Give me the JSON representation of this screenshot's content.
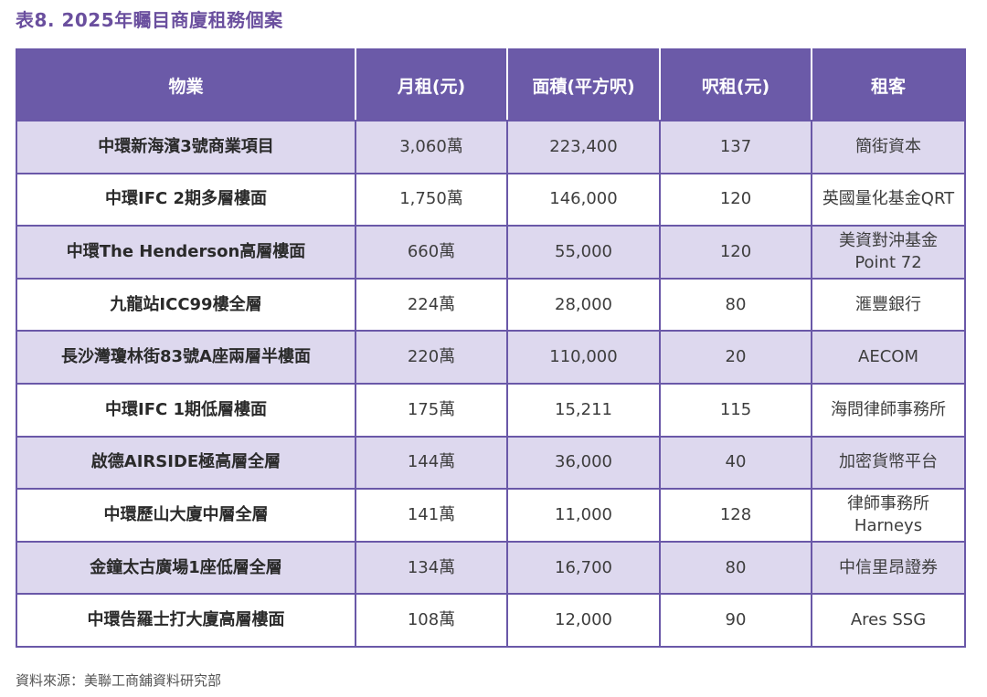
{
  "title": "表8. 2025年矚目商廈租務個案",
  "columns": [
    "物業",
    "月租(元)",
    "面積(平方呎)",
    "呎租(元)",
    "租客"
  ],
  "rows": [
    {
      "property": "中環新海濱3號商業項目",
      "rent": "3,060萬",
      "area": "223,400",
      "psf": "137",
      "tenant": [
        "簡街資本"
      ]
    },
    {
      "property": "中環IFC 2期多層樓面",
      "rent": "1,750萬",
      "area": "146,000",
      "psf": "120",
      "tenant": [
        "英國量化基金QRT"
      ]
    },
    {
      "property": "中環The Henderson高層樓面",
      "rent": "660萬",
      "area": "55,000",
      "psf": "120",
      "tenant": [
        "美資對沖基金",
        "Point 72"
      ]
    },
    {
      "property": "九龍站ICC99樓全層",
      "rent": "224萬",
      "area": "28,000",
      "psf": "80",
      "tenant": [
        "滙豐銀行"
      ]
    },
    {
      "property": "長沙灣瓊林街83號A座兩層半樓面",
      "rent": "220萬",
      "area": "110,000",
      "psf": "20",
      "tenant": [
        "AECOM"
      ]
    },
    {
      "property": "中環IFC 1期低層樓面",
      "rent": "175萬",
      "area": "15,211",
      "psf": "115",
      "tenant": [
        "海問律師事務所"
      ]
    },
    {
      "property": "啟德AIRSIDE極高層全層",
      "rent": "144萬",
      "area": "36,000",
      "psf": "40",
      "tenant": [
        "加密貨幣平台"
      ]
    },
    {
      "property": "中環歷山大廈中層全層",
      "rent": "141萬",
      "area": "11,000",
      "psf": "128",
      "tenant": [
        "律師事務所",
        "Harneys"
      ]
    },
    {
      "property": "金鐘太古廣場1座低層全層",
      "rent": "134萬",
      "area": "16,700",
      "psf": "80",
      "tenant": [
        "中信里昂證券"
      ]
    },
    {
      "property": "中環告羅士打大廈高層樓面",
      "rent": "108萬",
      "area": "12,000",
      "psf": "90",
      "tenant": [
        "Ares SSG"
      ]
    }
  ],
  "source": "資料來源：美聯工商舖資料研究部"
}
